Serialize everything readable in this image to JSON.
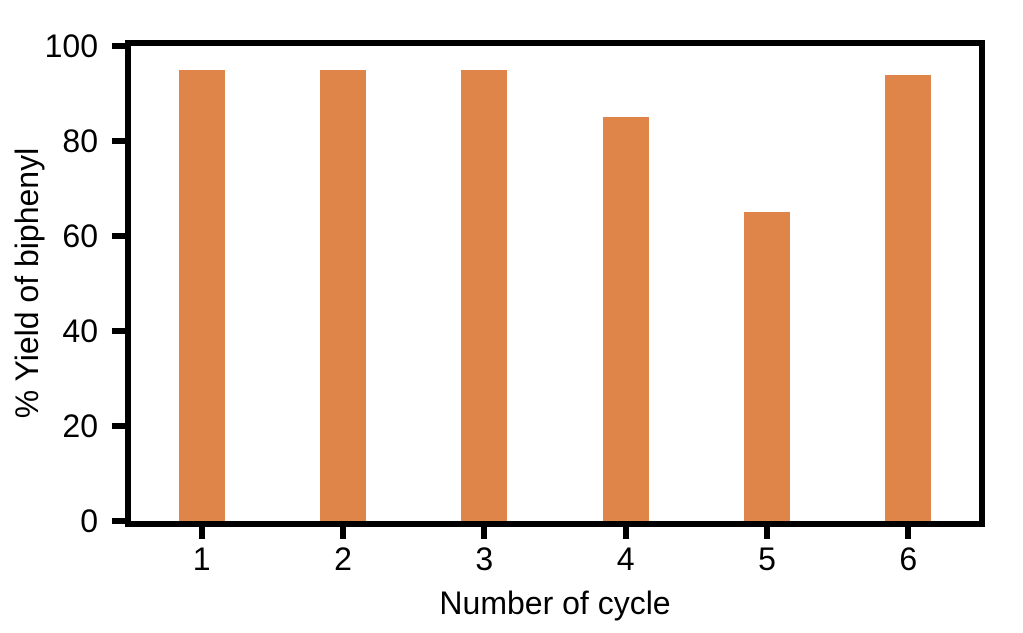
{
  "chart_data": {
    "type": "bar",
    "categories": [
      "1",
      "2",
      "3",
      "4",
      "5",
      "6"
    ],
    "values": [
      95,
      95,
      95,
      85,
      65,
      94
    ],
    "title": "",
    "xlabel": "Number of cycle",
    "ylabel": "% Yield of biphenyl",
    "ylim": [
      0,
      100
    ],
    "yticks": [
      0,
      20,
      40,
      60,
      80,
      100
    ],
    "bar_color": "#E0854A",
    "axis_color": "#000000",
    "background": "#FFFFFF",
    "grid": false,
    "legend": "none"
  }
}
